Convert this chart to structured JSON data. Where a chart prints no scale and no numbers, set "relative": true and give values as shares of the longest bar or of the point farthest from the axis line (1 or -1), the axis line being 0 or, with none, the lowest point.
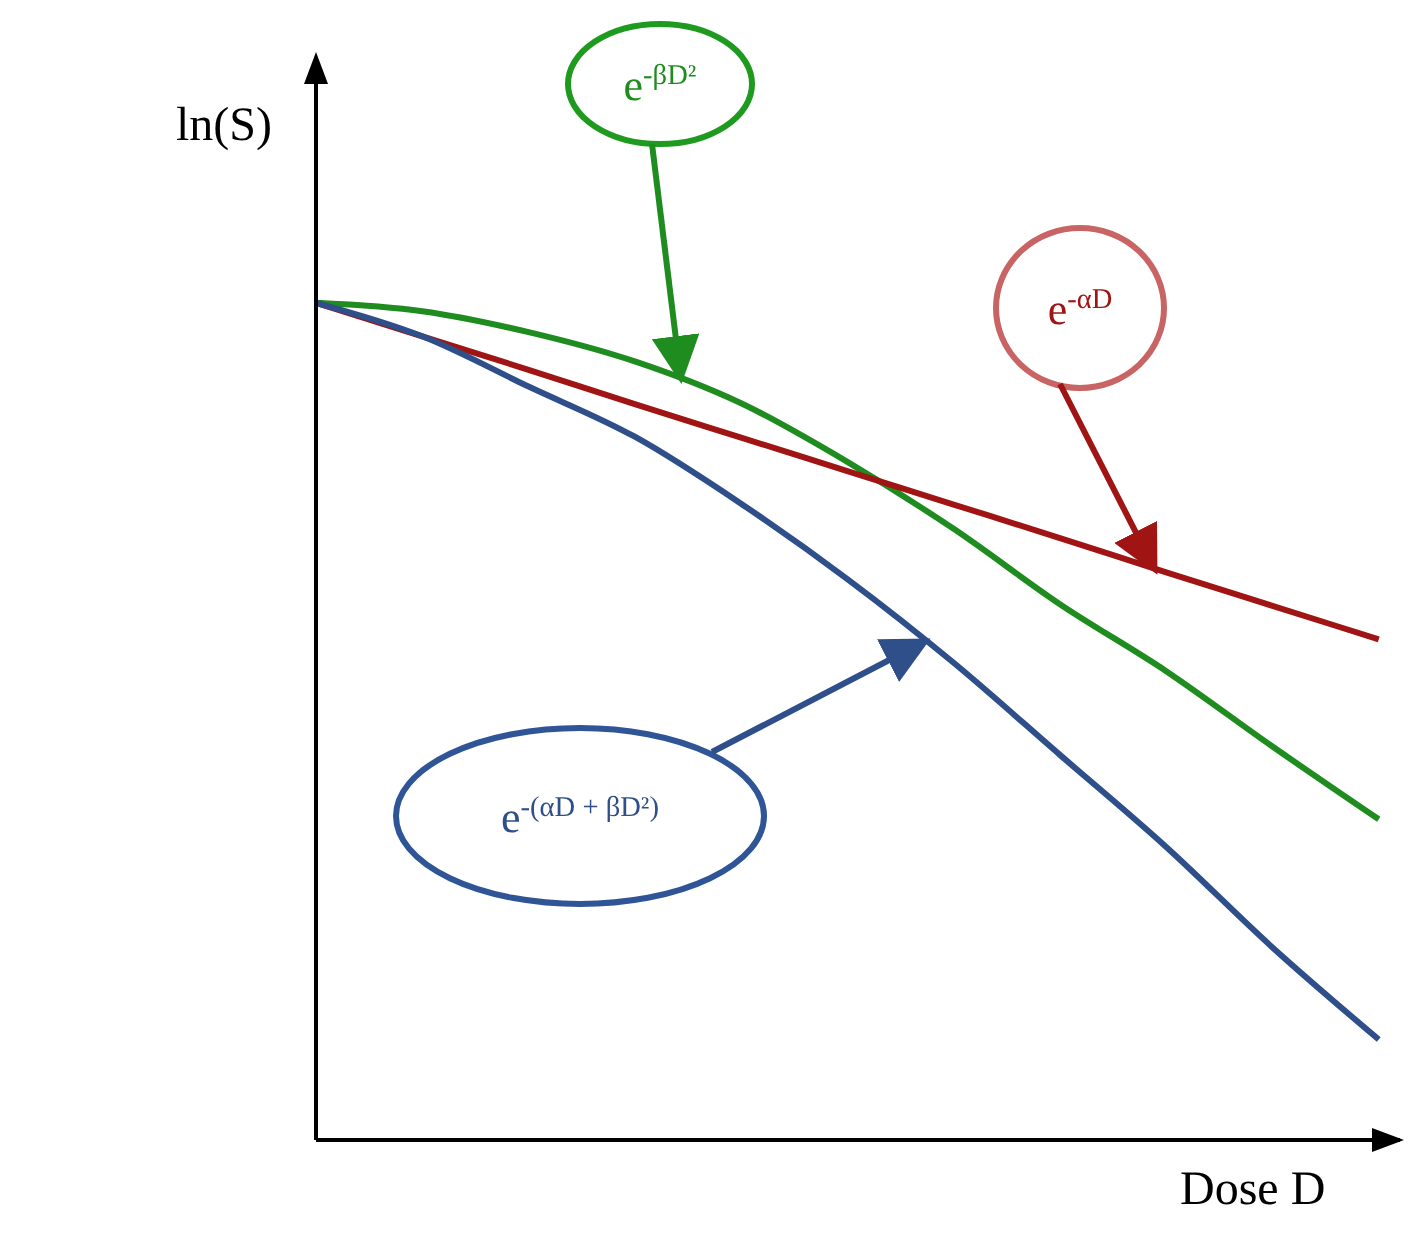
{
  "chart_data": {
    "type": "line",
    "relative": true,
    "xlabel": "Dose D",
    "ylabel": "ln(S)",
    "legend": false,
    "grid": false,
    "marker": "none",
    "line_style": "solid",
    "categories": [
      null,
      null,
      null,
      null,
      null,
      null,
      null,
      null,
      null,
      null,
      null
    ],
    "series": [
      {
        "name": "e$^{-βD²}$",
        "color": "#1e8c1e",
        "values": [
          1,
          0.99,
          0.965,
          0.93,
          0.88,
          0.81,
          0.73,
          0.64,
          0.56,
          0.47,
          0.383
        ]
      },
      {
        "name": "e$^{-αD}$",
        "color": "#a01414",
        "values": [
          1,
          0.96,
          0.92,
          0.879,
          0.839,
          0.799,
          0.759,
          0.719,
          0.678,
          0.638,
          0.598
        ]
      },
      {
        "name": "e$^{-(αD + βD²)}$",
        "color": "#2f4f8a",
        "values": [
          1,
          0.96,
          0.9,
          0.84,
          0.76,
          0.67,
          0.57,
          0.46,
          0.35,
          0.23,
          0.12
        ]
      }
    ]
  }
}
